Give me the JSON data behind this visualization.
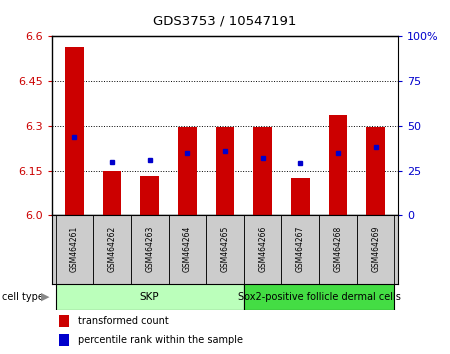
{
  "title": "GDS3753 / 10547191",
  "samples": [
    "GSM464261",
    "GSM464262",
    "GSM464263",
    "GSM464264",
    "GSM464265",
    "GSM464266",
    "GSM464267",
    "GSM464268",
    "GSM464269"
  ],
  "transformed_counts": [
    6.565,
    6.148,
    6.13,
    6.295,
    6.295,
    6.295,
    6.125,
    6.335,
    6.295
  ],
  "percentile_ranks": [
    44,
    30,
    31,
    35,
    36,
    32,
    29,
    35,
    38
  ],
  "ylim_left": [
    6.0,
    6.6
  ],
  "ylim_right": [
    0,
    100
  ],
  "yticks_left": [
    6.0,
    6.15,
    6.3,
    6.45,
    6.6
  ],
  "yticks_right": [
    0,
    25,
    50,
    75,
    100
  ],
  "cell_types": [
    {
      "label": "SKP",
      "n_samples": 5,
      "color": "#bbffbb"
    },
    {
      "label": "Sox2-positive follicle dermal cells",
      "n_samples": 4,
      "color": "#44dd44"
    }
  ],
  "bar_color": "#cc0000",
  "dot_color": "#0000cc",
  "bar_width": 0.5,
  "background_color": "#ffffff",
  "grid_color": "#000000",
  "tick_label_color_left": "#cc0000",
  "tick_label_color_right": "#0000cc",
  "sample_box_color": "#cccccc",
  "legend_items": [
    "transformed count",
    "percentile rank within the sample"
  ]
}
